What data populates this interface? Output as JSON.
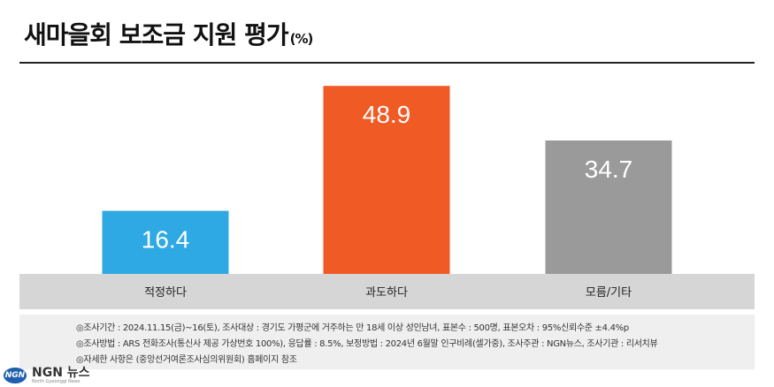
{
  "chart_data": {
    "type": "bar",
    "title": "새마을회 보조금 지원 평가",
    "unit": "(%)",
    "categories": [
      "적정하다",
      "과도하다",
      "모름/기타"
    ],
    "values": [
      16.4,
      48.9,
      34.7
    ],
    "value_labels": [
      "16.4",
      "48.9",
      "34.7"
    ],
    "colors": [
      "#2ea9e3",
      "#f05a24",
      "#9a9a9a"
    ],
    "ylim": [
      0,
      54
    ],
    "grid": false,
    "legend": "none"
  },
  "notes": [
    "◎조사기간 : 2024.11.15(금)~16(토), 조사대상 : 경기도 가평군에 거주하는 만 18세 이상 성인남녀, 표본수 : 500명, 표본오차 : 95%신뢰수준 ±4.4%p",
    "◎조사방법 : ARS 전화조사(통신사 제공 가상번호 100%), 응답률 : 8.5%, 보정방법 : 2024년 6월말 인구비례(셀가중), 조사주관 : NGN뉴스, 조사기관 : 리서치뷰",
    "◎자세한 사항은 (중앙선거여론조사심의위원회) 홈페이지 참조"
  ],
  "logo": {
    "mark": "NGN",
    "name": "NGN 뉴스",
    "subtitle": "North Gyeonggi News"
  }
}
